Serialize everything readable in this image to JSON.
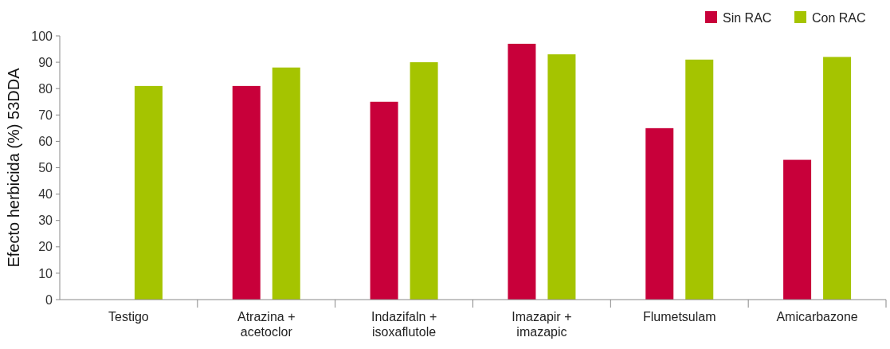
{
  "chart_data": {
    "type": "bar",
    "ylabel": "Efecto herbicida (%) 53DDA",
    "categories": [
      "Testigo",
      "Atrazina +\nacetoclor",
      "Indazifaln +\nisoxaflutole",
      "Imazapir +\nimazapic",
      "Flumetsulam",
      "Amicarbazone"
    ],
    "series": [
      {
        "name": "Sin RAC",
        "color": "#c8003a",
        "values": [
          null,
          81,
          75,
          97,
          65,
          53
        ]
      },
      {
        "name": "Con RAC",
        "color": "#a5c400",
        "values": [
          81,
          88,
          90,
          93,
          91,
          92
        ]
      }
    ],
    "ylim": [
      0,
      100
    ],
    "yticks": [
      0,
      10,
      20,
      30,
      40,
      50,
      60,
      70,
      80,
      90,
      100
    ],
    "grid": false,
    "legend": "top right"
  }
}
